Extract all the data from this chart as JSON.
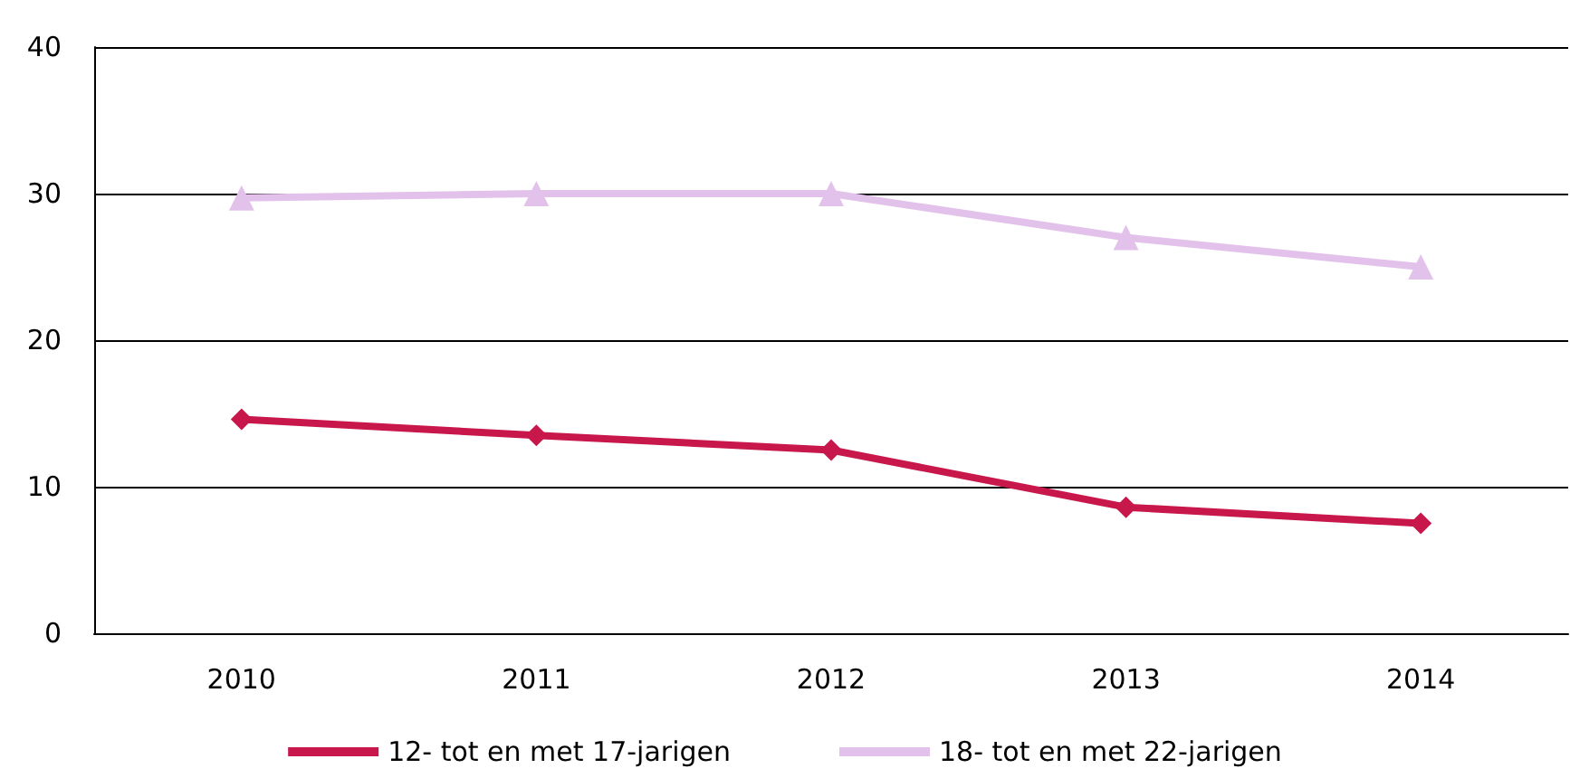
{
  "chart_data": {
    "type": "line",
    "categories": [
      "2010",
      "2011",
      "2012",
      "2013",
      "2014"
    ],
    "ylim": [
      0,
      40
    ],
    "yticks": [
      0,
      10,
      20,
      30,
      40
    ],
    "grid": "y",
    "legend": "bottom",
    "series": [
      {
        "name": "12- tot en met 17-jarigen",
        "color": "#c8174b",
        "marker": "diamond",
        "values": [
          14.6,
          13.5,
          12.5,
          8.6,
          7.5
        ]
      },
      {
        "name": "18- tot en met 22-jarigen",
        "color": "#e2c2ea",
        "marker": "triangle",
        "values": [
          29.7,
          30,
          30,
          27,
          25
        ]
      }
    ]
  }
}
